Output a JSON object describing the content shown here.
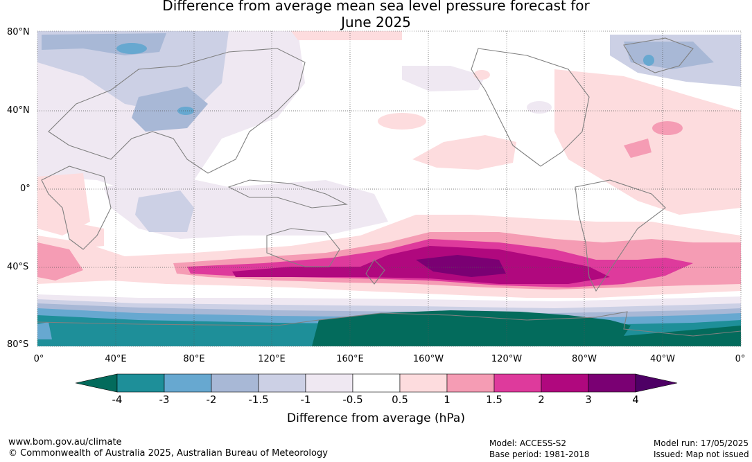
{
  "title": {
    "line1": "Difference from average mean sea level pressure forecast for",
    "line2": "June 2025"
  },
  "map": {
    "lat_labels": [
      "80°N",
      "40°N",
      "0°",
      "40°S",
      "80°S"
    ],
    "lon_labels": [
      "0°",
      "40°E",
      "80°E",
      "120°E",
      "160°E",
      "160°W",
      "120°W",
      "80°W",
      "40°W",
      "0°"
    ],
    "land_color": "#808080"
  },
  "colorbar": {
    "title": "Difference from average (hPa)",
    "tick_labels": [
      "-4",
      "-3",
      "-2",
      "-1.5",
      "-1",
      "-0.5",
      "0.5",
      "1",
      "1.5",
      "2",
      "3",
      "4"
    ],
    "colors": [
      "#036b5c",
      "#1e8f99",
      "#67a8d0",
      "#a8b8d6",
      "#ccd0e5",
      "#efe8f2",
      "#ffffff",
      "#fddcde",
      "#f59cb4",
      "#de3a9c",
      "#b0087e",
      "#7a0073",
      "#4e0065"
    ]
  },
  "footer": {
    "website": "www.bom.gov.au/climate",
    "copyright": "© Commonwealth of Australia 2025, Australian Bureau of Meteorology",
    "model": "Model: ACCESS-S2",
    "base_period": "Base period: 1981-2018",
    "model_run": "Model run: 17/05/2025",
    "issued": "Issued: Map not issued"
  }
}
